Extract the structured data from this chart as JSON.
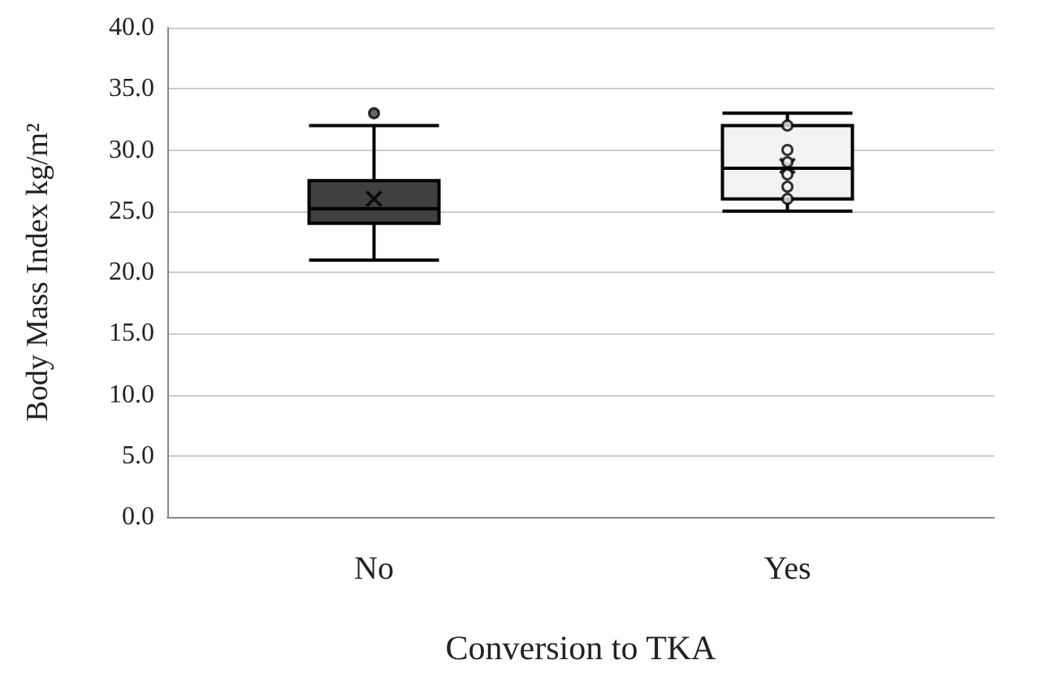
{
  "chart_data": {
    "type": "box",
    "xlabel": "Conversion to TKA",
    "ylabel": "Body Mass Index kg/m²",
    "categories": [
      "No",
      "Yes"
    ],
    "series": [
      {
        "color": "#404040",
        "boxes": [
          {
            "low": 21,
            "q1": 24,
            "median": 25.2,
            "q3": 27.5,
            "high": 32,
            "mean": 26,
            "outliers": [
              33
            ]
          },
          null
        ]
      },
      {
        "color": "#f2f2f2",
        "boxes": [
          null,
          {
            "low": 25,
            "q1": 26,
            "median": 28.5,
            "q3": 32,
            "high": 33,
            "mean": 28.7,
            "outliers": [
              32,
              30,
              29,
              28,
              27,
              26
            ]
          }
        ]
      }
    ],
    "ylim": [
      0,
      40
    ],
    "yticks": [
      {
        "value": 0,
        "label": "0.0"
      },
      {
        "value": 5,
        "label": "5.0"
      },
      {
        "value": 10,
        "label": "10.0"
      },
      {
        "value": 15,
        "label": "15.0"
      },
      {
        "value": 20,
        "label": "20.0"
      },
      {
        "value": 25,
        "label": "25.0"
      },
      {
        "value": 30,
        "label": "30.0"
      },
      {
        "value": 35,
        "label": "35.0"
      },
      {
        "value": 40,
        "label": "40.0"
      }
    ],
    "grid": "y",
    "marker": "cross"
  }
}
